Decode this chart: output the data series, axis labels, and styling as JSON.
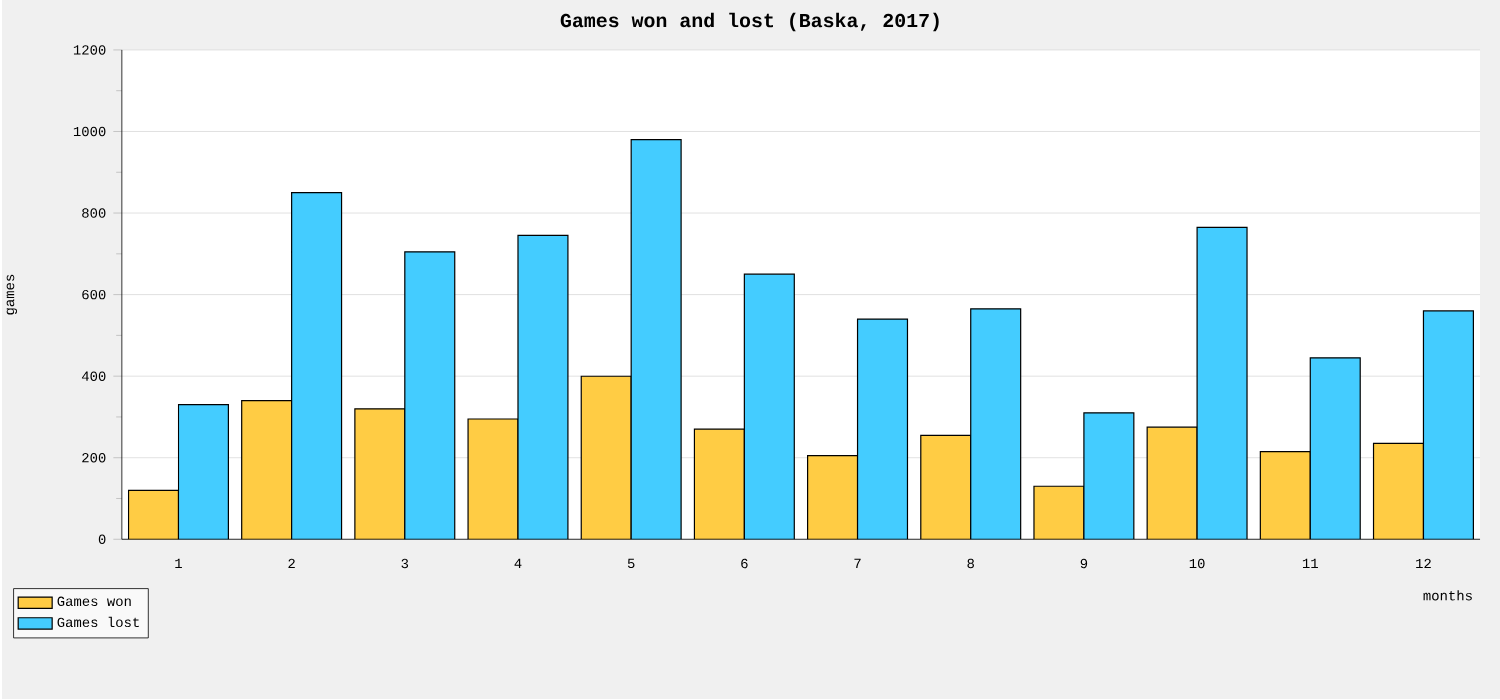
{
  "chart_data": {
    "type": "bar",
    "title": "Games won and lost (Baska, 2017)",
    "xlabel": "months",
    "ylabel": "games",
    "categories": [
      "1",
      "2",
      "3",
      "4",
      "5",
      "6",
      "7",
      "8",
      "9",
      "10",
      "11",
      "12"
    ],
    "series": [
      {
        "name": "Games won",
        "color": "#ffcc44",
        "values": [
          120,
          340,
          320,
          295,
          400,
          270,
          205,
          255,
          130,
          275,
          215,
          235
        ]
      },
      {
        "name": "Games lost",
        "color": "#44ccff",
        "values": [
          330,
          850,
          705,
          745,
          980,
          650,
          540,
          565,
          310,
          765,
          445,
          560
        ]
      }
    ],
    "ylim": [
      0,
      1200
    ],
    "yticks": [
      0,
      200,
      400,
      600,
      800,
      1000,
      1200
    ],
    "grid": "y",
    "legend": "bottom left"
  }
}
